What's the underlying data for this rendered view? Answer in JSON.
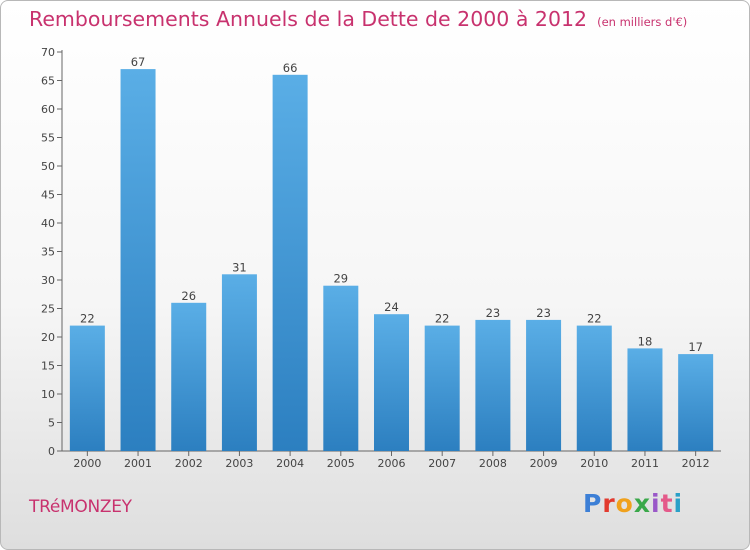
{
  "header": {
    "title": "Remboursements Annuels de la Dette de 2000 à 2012",
    "unit": "(en milliers d'€)"
  },
  "commune": "TRéMONZEY",
  "logo": {
    "letters": [
      "P",
      "r",
      "o",
      "x",
      "i",
      "t",
      "i"
    ]
  },
  "colors": {
    "bar_top": "#5aaee6",
    "bar_bottom": "#2c7fc0",
    "title": "#c8326e",
    "axis": "#444444"
  },
  "chart_data": {
    "type": "bar",
    "title": "Remboursements Annuels de la Dette de 2000 à 2012",
    "categories": [
      "2000",
      "2001",
      "2002",
      "2003",
      "2004",
      "2005",
      "2006",
      "2007",
      "2008",
      "2009",
      "2010",
      "2011",
      "2012"
    ],
    "values": [
      22,
      67,
      26,
      31,
      66,
      29,
      24,
      22,
      23,
      23,
      22,
      18,
      17
    ],
    "data_labels": [
      "22",
      "67",
      "26",
      "31",
      "66",
      "29",
      "24",
      "22",
      "23",
      "23",
      "22",
      "18",
      "17"
    ],
    "ylim": [
      0,
      70
    ],
    "yticks": [
      0,
      5,
      10,
      15,
      20,
      25,
      30,
      35,
      40,
      45,
      50,
      55,
      60,
      65,
      70
    ],
    "grid": false,
    "legend": "none"
  }
}
